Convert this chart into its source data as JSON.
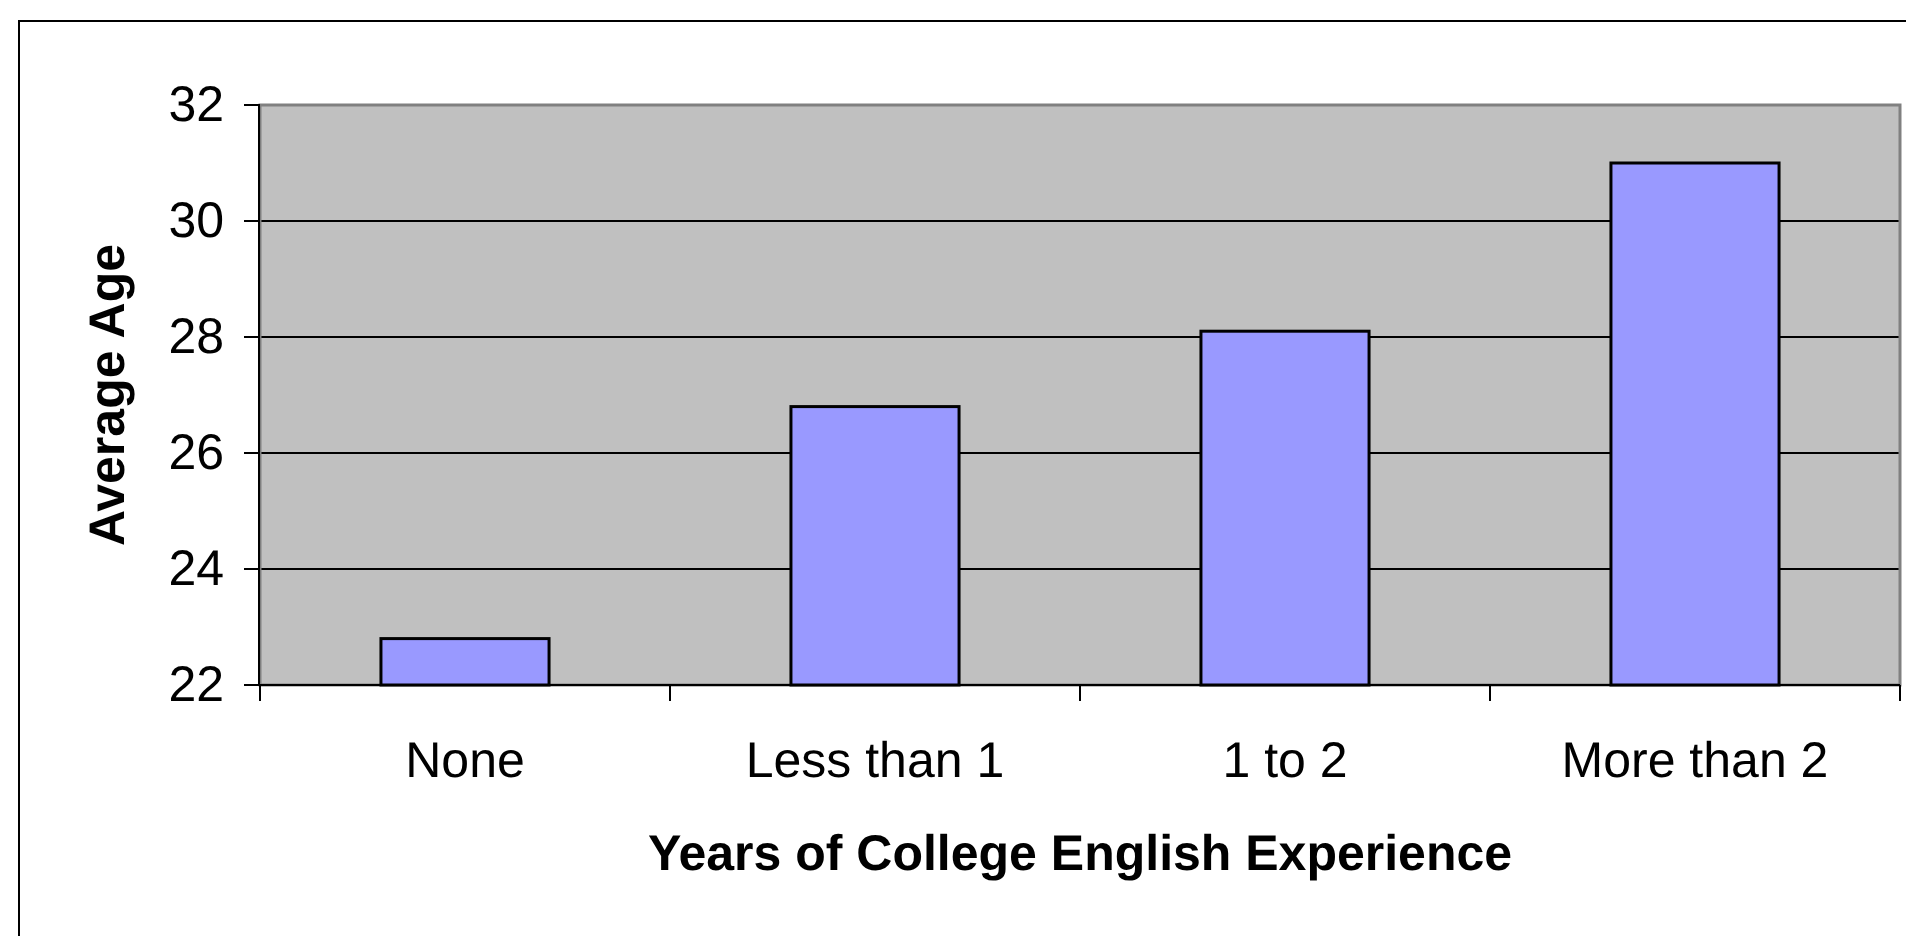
{
  "chart_data": {
    "type": "bar",
    "categories": [
      "None",
      "Less than 1",
      "1 to 2",
      "More than 2"
    ],
    "values": [
      22.8,
      26.8,
      28.1,
      31.0
    ],
    "color": "#9999ff",
    "xlabel": "Years of College English Experience",
    "ylabel": "Average Age",
    "ylim": [
      22,
      32
    ],
    "yticks": [
      22,
      24,
      26,
      28,
      30,
      32
    ],
    "grid": "y"
  }
}
